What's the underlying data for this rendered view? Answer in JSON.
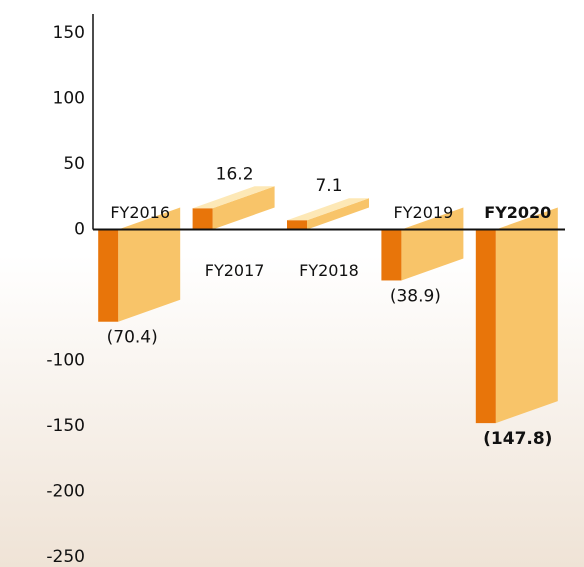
{
  "chart_data": {
    "type": "bar3d",
    "categories": [
      "FY2016",
      "FY2017",
      "FY2018",
      "FY2019",
      "FY2020"
    ],
    "values": [
      -70.4,
      16.2,
      7.1,
      -38.9,
      -147.8
    ],
    "value_labels": [
      "(70.4)",
      "16.2",
      "7.1",
      "(38.9)",
      "(147.8)"
    ],
    "colors": {
      "front": "#e8750a",
      "side": "#f8c469",
      "top": "#fde8b6"
    },
    "ylim": [
      -250,
      150
    ],
    "yticks": [
      150,
      100,
      50,
      0,
      -100,
      -150,
      -200,
      -250
    ]
  }
}
